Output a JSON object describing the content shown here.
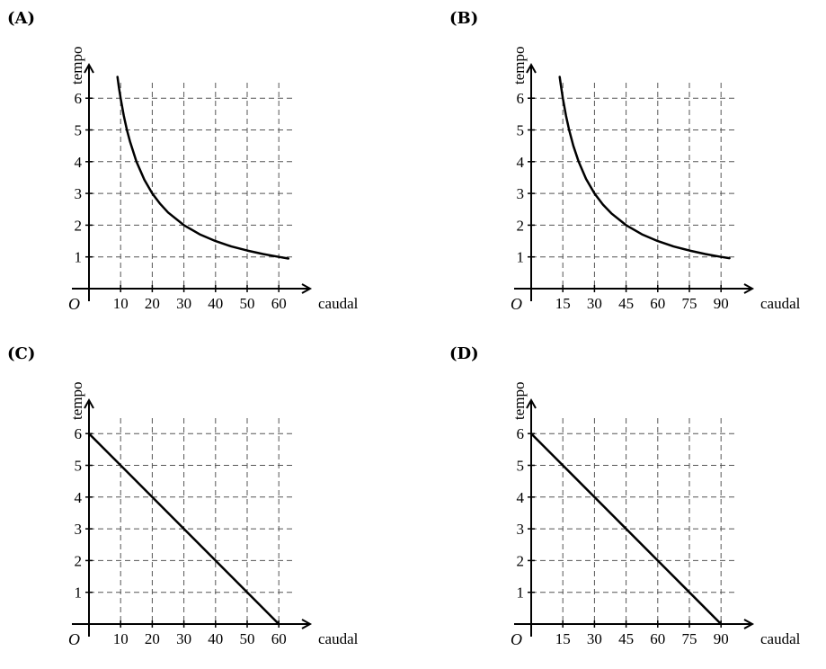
{
  "chart_data": [
    {
      "panel_label": "(A)",
      "type": "line",
      "xlabel": "caudal",
      "ylabel": "tempo",
      "origin_label": "O",
      "x_ticks": [
        10,
        20,
        30,
        40,
        50,
        60
      ],
      "y_ticks": [
        1,
        2,
        3,
        4,
        5,
        6
      ],
      "xlim": [
        0,
        70
      ],
      "ylim": [
        0,
        7
      ],
      "grid": true,
      "series": [
        {
          "values_x": [
            9,
            9.5,
            10,
            11,
            12,
            13,
            15,
            17.5,
            20,
            22.5,
            25,
            30,
            35,
            40,
            45,
            50,
            55,
            60,
            63
          ],
          "values_y": [
            6.67,
            6.32,
            6.0,
            5.45,
            5.0,
            4.62,
            4.0,
            3.43,
            3.0,
            2.67,
            2.4,
            2.0,
            1.71,
            1.5,
            1.33,
            1.2,
            1.09,
            1.0,
            0.95
          ]
        }
      ]
    },
    {
      "panel_label": "(B)",
      "type": "line",
      "xlabel": "caudal",
      "ylabel": "tempo",
      "origin_label": "O",
      "x_ticks": [
        15,
        30,
        45,
        60,
        75,
        90
      ],
      "y_ticks": [
        1,
        2,
        3,
        4,
        5,
        6
      ],
      "xlim": [
        0,
        105
      ],
      "ylim": [
        0,
        7
      ],
      "grid": true,
      "series": [
        {
          "values_x": [
            13.5,
            14,
            15,
            16.5,
            18,
            20,
            22.5,
            26,
            30,
            34,
            38,
            45,
            52.5,
            60,
            67.5,
            75,
            82.5,
            90,
            94
          ],
          "values_y": [
            6.67,
            6.43,
            6.0,
            5.45,
            5.0,
            4.5,
            4.0,
            3.46,
            3.0,
            2.65,
            2.37,
            2.0,
            1.71,
            1.5,
            1.33,
            1.2,
            1.09,
            1.0,
            0.96
          ]
        }
      ]
    },
    {
      "panel_label": "(C)",
      "type": "line",
      "xlabel": "caudal",
      "ylabel": "tempo",
      "origin_label": "O",
      "x_ticks": [
        10,
        20,
        30,
        40,
        50,
        60
      ],
      "y_ticks": [
        1,
        2,
        3,
        4,
        5,
        6
      ],
      "xlim": [
        0,
        70
      ],
      "ylim": [
        0,
        7
      ],
      "grid": true,
      "series": [
        {
          "values_x": [
            0,
            60
          ],
          "values_y": [
            6,
            0
          ]
        }
      ]
    },
    {
      "panel_label": "(D)",
      "type": "line",
      "xlabel": "caudal",
      "ylabel": "tempo",
      "origin_label": "O",
      "x_ticks": [
        15,
        30,
        45,
        60,
        75,
        90
      ],
      "y_ticks": [
        1,
        2,
        3,
        4,
        5,
        6
      ],
      "xlim": [
        0,
        105
      ],
      "ylim": [
        0,
        7
      ],
      "grid": true,
      "series": [
        {
          "values_x": [
            0,
            90
          ],
          "values_y": [
            6,
            0
          ]
        }
      ]
    }
  ]
}
